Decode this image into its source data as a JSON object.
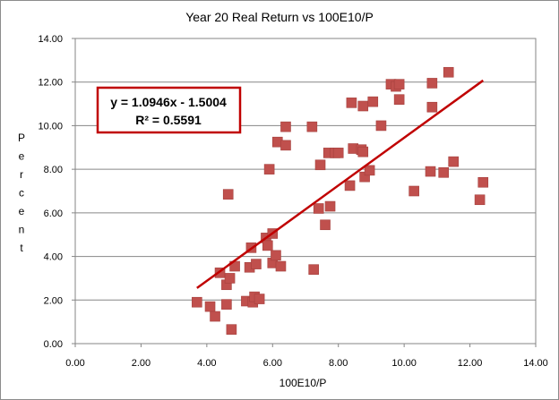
{
  "chart_data": {
    "type": "scatter",
    "title": "Year 20 Real Return vs 100E10/P",
    "xlabel": "100E10/P",
    "ylabel": "Percent",
    "xlim": [
      0,
      14
    ],
    "ylim": [
      0,
      14
    ],
    "x_ticks": [
      "0.00",
      "2.00",
      "4.00",
      "6.00",
      "8.00",
      "10.00",
      "12.00",
      "14.00"
    ],
    "y_ticks": [
      "0.00",
      "2.00",
      "4.00",
      "6.00",
      "8.00",
      "10.00",
      "12.00",
      "14.00"
    ],
    "grid": "horizontal-major",
    "marker_color": "#c0504d",
    "trendline": {
      "equation": "y = 1.0946x - 1.5004",
      "r_squared": "R² = 0.5591",
      "slope": 1.0946,
      "intercept": -1.5004,
      "x_range": [
        3.7,
        12.4
      ],
      "color": "#c00000"
    },
    "points": [
      {
        "x": 3.7,
        "y": 1.9
      },
      {
        "x": 4.1,
        "y": 1.7
      },
      {
        "x": 4.25,
        "y": 1.25
      },
      {
        "x": 4.4,
        "y": 3.25
      },
      {
        "x": 4.6,
        "y": 2.7
      },
      {
        "x": 4.6,
        "y": 1.8
      },
      {
        "x": 4.65,
        "y": 6.85
      },
      {
        "x": 4.7,
        "y": 3.0
      },
      {
        "x": 4.75,
        "y": 0.65
      },
      {
        "x": 4.85,
        "y": 3.55
      },
      {
        "x": 5.2,
        "y": 1.95
      },
      {
        "x": 5.3,
        "y": 3.5
      },
      {
        "x": 5.35,
        "y": 4.4
      },
      {
        "x": 5.4,
        "y": 1.9
      },
      {
        "x": 5.45,
        "y": 2.15
      },
      {
        "x": 5.5,
        "y": 3.65
      },
      {
        "x": 5.6,
        "y": 2.05
      },
      {
        "x": 5.8,
        "y": 4.85
      },
      {
        "x": 5.85,
        "y": 4.5
      },
      {
        "x": 5.9,
        "y": 8.0
      },
      {
        "x": 6.0,
        "y": 5.05
      },
      {
        "x": 6.0,
        "y": 3.7
      },
      {
        "x": 6.1,
        "y": 4.05
      },
      {
        "x": 6.15,
        "y": 9.25
      },
      {
        "x": 6.25,
        "y": 3.55
      },
      {
        "x": 6.4,
        "y": 9.95
      },
      {
        "x": 6.4,
        "y": 9.1
      },
      {
        "x": 7.2,
        "y": 9.95
      },
      {
        "x": 7.25,
        "y": 3.4
      },
      {
        "x": 7.4,
        "y": 6.2
      },
      {
        "x": 7.45,
        "y": 8.2
      },
      {
        "x": 7.6,
        "y": 5.45
      },
      {
        "x": 7.7,
        "y": 8.75
      },
      {
        "x": 7.75,
        "y": 6.3
      },
      {
        "x": 7.9,
        "y": 8.75
      },
      {
        "x": 8.0,
        "y": 8.75
      },
      {
        "x": 8.35,
        "y": 7.25
      },
      {
        "x": 8.4,
        "y": 11.05
      },
      {
        "x": 8.45,
        "y": 8.95
      },
      {
        "x": 8.7,
        "y": 8.9
      },
      {
        "x": 8.75,
        "y": 10.9
      },
      {
        "x": 8.75,
        "y": 8.8
      },
      {
        "x": 8.8,
        "y": 7.65
      },
      {
        "x": 8.95,
        "y": 7.95
      },
      {
        "x": 9.05,
        "y": 11.1
      },
      {
        "x": 9.3,
        "y": 10.0
      },
      {
        "x": 9.6,
        "y": 11.9
      },
      {
        "x": 9.75,
        "y": 11.8
      },
      {
        "x": 9.85,
        "y": 11.9
      },
      {
        "x": 9.85,
        "y": 11.2
      },
      {
        "x": 10.3,
        "y": 7.0
      },
      {
        "x": 10.8,
        "y": 7.9
      },
      {
        "x": 10.85,
        "y": 11.95
      },
      {
        "x": 10.85,
        "y": 10.85
      },
      {
        "x": 11.2,
        "y": 7.85
      },
      {
        "x": 11.35,
        "y": 12.45
      },
      {
        "x": 11.5,
        "y": 8.35
      },
      {
        "x": 12.3,
        "y": 6.6
      },
      {
        "x": 12.4,
        "y": 7.4
      }
    ]
  }
}
